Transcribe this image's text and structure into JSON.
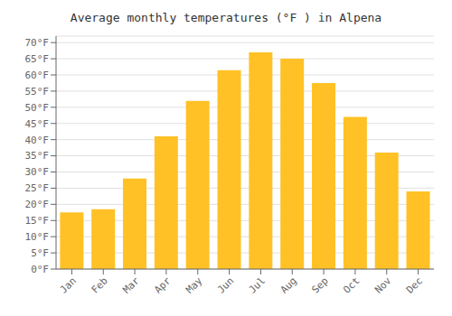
{
  "chart_data": {
    "type": "bar",
    "title": "Average monthly temperatures (°F ) in Alpena",
    "categories": [
      "Jan",
      "Feb",
      "Mar",
      "Apr",
      "May",
      "Jun",
      "Jul",
      "Aug",
      "Sep",
      "Oct",
      "Nov",
      "Dec"
    ],
    "values": [
      17.5,
      18.5,
      28,
      41,
      52,
      61.5,
      67,
      65,
      57.5,
      47,
      36,
      24
    ],
    "color": "#FFC125",
    "ylim": [
      0,
      72
    ],
    "yticks": [
      {
        "value": 0,
        "label": "0°F"
      },
      {
        "value": 5,
        "label": "5°F"
      },
      {
        "value": 10,
        "label": "10°F"
      },
      {
        "value": 15,
        "label": "15°F"
      },
      {
        "value": 20,
        "label": "20°F"
      },
      {
        "value": 25,
        "label": "25°F"
      },
      {
        "value": 30,
        "label": "30°F"
      },
      {
        "value": 35,
        "label": "35°F"
      },
      {
        "value": 40,
        "label": "40°F"
      },
      {
        "value": 45,
        "label": "45°F"
      },
      {
        "value": 50,
        "label": "50°F"
      },
      {
        "value": 55,
        "label": "55°F"
      },
      {
        "value": 60,
        "label": "60°F"
      },
      {
        "value": 65,
        "label": "65°F"
      },
      {
        "value": 70,
        "label": "70°F"
      }
    ],
    "grid": true
  }
}
